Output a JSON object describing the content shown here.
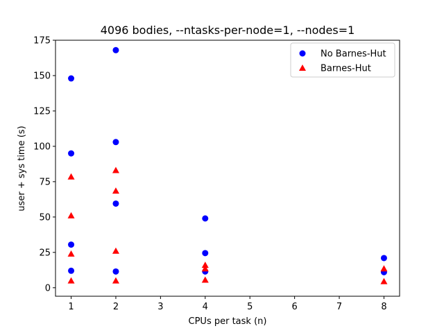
{
  "chart_data": {
    "type": "scatter",
    "title": "4096 bodies, --ntasks-per-node=1, --nodes=1",
    "xlabel": "CPUs per task (n)",
    "ylabel": "user + sys time (s)",
    "xlim": [
      0.65,
      8.35
    ],
    "ylim": [
      -6,
      175
    ],
    "xticks": [
      1,
      2,
      3,
      4,
      5,
      6,
      7,
      8
    ],
    "yticks": [
      0,
      25,
      50,
      75,
      100,
      125,
      150,
      175
    ],
    "grid": false,
    "legend_position": "top-right",
    "series": [
      {
        "name": "No Barnes-Hut",
        "marker": "circle",
        "color": "#0000ff",
        "points": [
          {
            "x": 1,
            "y": 148
          },
          {
            "x": 1,
            "y": 95
          },
          {
            "x": 1,
            "y": 30.5
          },
          {
            "x": 1,
            "y": 12
          },
          {
            "x": 2,
            "y": 168
          },
          {
            "x": 2,
            "y": 103
          },
          {
            "x": 2,
            "y": 59.5
          },
          {
            "x": 2,
            "y": 11.5
          },
          {
            "x": 4,
            "y": 49
          },
          {
            "x": 4,
            "y": 24.5
          },
          {
            "x": 4,
            "y": 11.5
          },
          {
            "x": 8,
            "y": 21
          },
          {
            "x": 8,
            "y": 11
          }
        ]
      },
      {
        "name": "Barnes-Hut",
        "marker": "triangle",
        "color": "#ff0000",
        "points": [
          {
            "x": 1,
            "y": 78.5
          },
          {
            "x": 1,
            "y": 51
          },
          {
            "x": 1,
            "y": 24
          },
          {
            "x": 1,
            "y": 5
          },
          {
            "x": 2,
            "y": 83
          },
          {
            "x": 2,
            "y": 68.5
          },
          {
            "x": 2,
            "y": 26
          },
          {
            "x": 2,
            "y": 5
          },
          {
            "x": 4,
            "y": 16
          },
          {
            "x": 4,
            "y": 13.5
          },
          {
            "x": 4,
            "y": 5.5
          },
          {
            "x": 8,
            "y": 13.5
          },
          {
            "x": 8,
            "y": 4.5
          }
        ]
      }
    ]
  }
}
